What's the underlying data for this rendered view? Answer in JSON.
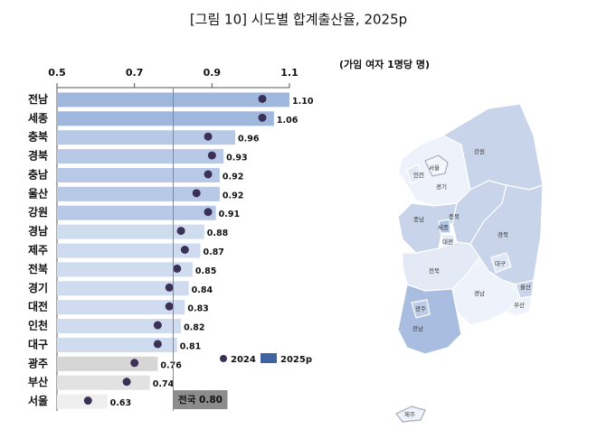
{
  "chart_data": {
    "type": "hbar_dot",
    "title": "[그림 10] 시도별 합계출산율, 2025p",
    "subtitle": "(가임 여자 1명당 명)",
    "categories": [
      "전남",
      "세종",
      "충북",
      "경북",
      "충남",
      "울산",
      "강원",
      "경남",
      "제주",
      "전북",
      "경기",
      "대전",
      "인천",
      "대구",
      "광주",
      "부산",
      "서울"
    ],
    "series": [
      {
        "name": "2024",
        "color": "#3b3157",
        "values": [
          1.03,
          1.03,
          0.89,
          0.9,
          0.89,
          0.86,
          0.89,
          0.82,
          0.83,
          0.81,
          0.79,
          0.79,
          0.76,
          0.76,
          0.7,
          0.68,
          0.58
        ]
      },
      {
        "name": "2025p",
        "color": "#3e63a0",
        "values": [
          1.1,
          1.06,
          0.96,
          0.93,
          0.92,
          0.92,
          0.91,
          0.88,
          0.87,
          0.85,
          0.84,
          0.83,
          0.82,
          0.81,
          0.76,
          0.74,
          0.63
        ],
        "value_labels": [
          "1.10",
          "1.06",
          "0.96",
          "0.93",
          "0.92",
          "0.92",
          "0.91",
          "0.88",
          "0.87",
          "0.85",
          "0.84",
          "0.83",
          "0.82",
          "0.81",
          "0.76",
          "0.74",
          "0.63"
        ],
        "colors": [
          "#9fb7dd",
          "#9fb7dd",
          "#b7c9e7",
          "#b7c9e7",
          "#b7c9e7",
          "#b7c9e7",
          "#b7c9e7",
          "#cfdcf0",
          "#cfdcf0",
          "#cfdcf0",
          "#cfdcf0",
          "#cfdcf0",
          "#cfdcf0",
          "#cfdcf0",
          "#d6d6d6",
          "#e2e2e2",
          "#efefef"
        ]
      }
    ],
    "xlim": [
      0.5,
      1.1
    ],
    "xticks": [
      0.5,
      0.7,
      0.9,
      1.1
    ],
    "reference": {
      "value": 0.8,
      "label": "전국 0.80"
    }
  },
  "map": {
    "regions": [
      "강원",
      "서울",
      "인천",
      "경기",
      "충북",
      "충남",
      "세종",
      "대전",
      "경북",
      "대구",
      "전북",
      "울산",
      "경남",
      "부산",
      "광주",
      "전남",
      "제주"
    ]
  }
}
